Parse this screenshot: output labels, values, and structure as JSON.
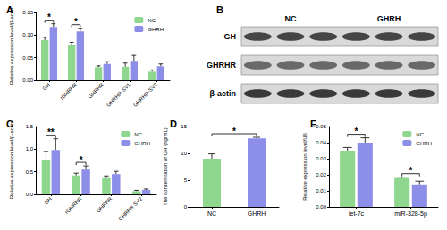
{
  "chart_data": [
    {
      "type": "bar",
      "title": "A",
      "ylabel": "Relative expression level/β-actin",
      "categories": [
        "GH",
        "rGHRHR",
        "GHRHR",
        "GHRHR-SV1",
        "GHRHR-SV2"
      ],
      "ylim": [
        0,
        0.15
      ],
      "yticks": [
        {
          "value": 0,
          "label": "0.00"
        },
        0.05,
        {
          "value": 0.1,
          "label": "0.10"
        },
        0.15
      ],
      "grid": false,
      "legend": "upper right",
      "series": [
        {
          "name": "NC",
          "color": "#8fd68f",
          "values": [
            0.089,
            0.077,
            0.029,
            0.03,
            0.019
          ],
          "errors": [
            0.006,
            0.007,
            0.003,
            0.008,
            0.004
          ]
        },
        {
          "name": "GHRH",
          "color": "#8c8ee8",
          "values": [
            0.118,
            0.108,
            0.036,
            0.043,
            0.031
          ],
          "errors": [
            0.007,
            0.007,
            0.005,
            0.012,
            0.005
          ]
        }
      ],
      "annotations": [
        {
          "category": "GH",
          "text": "*"
        },
        {
          "category": "rGHRHR",
          "text": "*"
        }
      ]
    },
    {
      "type": "bar",
      "title": "C",
      "ylabel": "Relative expression level/β-actin",
      "categories": [
        "GH",
        "rGHRHR",
        "GHRHR",
        "GHRHR SV2"
      ],
      "ylim": [
        0,
        1.5
      ],
      "yticks": [
        {
          "value": 0,
          "label": "0.0"
        },
        0.5,
        {
          "value": 1,
          "label": "1.0"
        },
        1.5
      ],
      "grid": false,
      "legend": "upper right",
      "series": [
        {
          "name": "NC",
          "color": "#8fd68f",
          "values": [
            0.75,
            0.42,
            0.36,
            0.07
          ],
          "errors": [
            0.2,
            0.05,
            0.05,
            0.02
          ]
        },
        {
          "name": "GHRH",
          "color": "#8c8ee8",
          "values": [
            0.98,
            0.55,
            0.45,
            0.1
          ],
          "errors": [
            0.25,
            0.08,
            0.06,
            0.02
          ]
        }
      ],
      "annotations": [
        {
          "category": "GH",
          "text": "**"
        },
        {
          "category": "rGHRHR",
          "text": "*"
        }
      ]
    },
    {
      "type": "bar",
      "title": "D",
      "ylabel": "The concentration of GH (ng/mL)",
      "categories": [
        "NC",
        "GHRH"
      ],
      "ylim": [
        0,
        15
      ],
      "yticks": [
        0,
        5,
        10,
        15
      ],
      "grid": false,
      "values": [
        9.0,
        12.8
      ],
      "errors": [
        0.9,
        0.2
      ],
      "colors": [
        "#8fd68f",
        "#8c8ee8"
      ],
      "annotations": [
        {
          "between": [
            "NC",
            "GHRH"
          ],
          "text": "*"
        }
      ]
    },
    {
      "type": "bar",
      "title": "E",
      "ylabel": "Relative expression level/U6",
      "categories": [
        "let-7c",
        "miR-328-5p"
      ],
      "ylim": [
        0,
        0.05
      ],
      "yticks": [
        {
          "value": 0,
          "label": "0.00"
        },
        0.01,
        0.02,
        0.03,
        0.04,
        0.05
      ],
      "grid": false,
      "legend": "upper right",
      "series": [
        {
          "name": "NC",
          "color": "#8fd68f",
          "values": [
            0.035,
            0.018
          ],
          "errors": [
            0.002,
            0.0005
          ]
        },
        {
          "name": "GHRH",
          "color": "#8c8ee8",
          "values": [
            0.04,
            0.014
          ],
          "errors": [
            0.003,
            0.002
          ]
        }
      ],
      "annotations": [
        {
          "category": "let-7c",
          "text": "*"
        },
        {
          "category": "miR-328-5p",
          "text": "*"
        }
      ]
    }
  ],
  "blot": {
    "title": "B",
    "columns": [
      "NC",
      "GHRH"
    ],
    "rows": [
      "GH",
      "GHRHR",
      "β-actin"
    ]
  }
}
